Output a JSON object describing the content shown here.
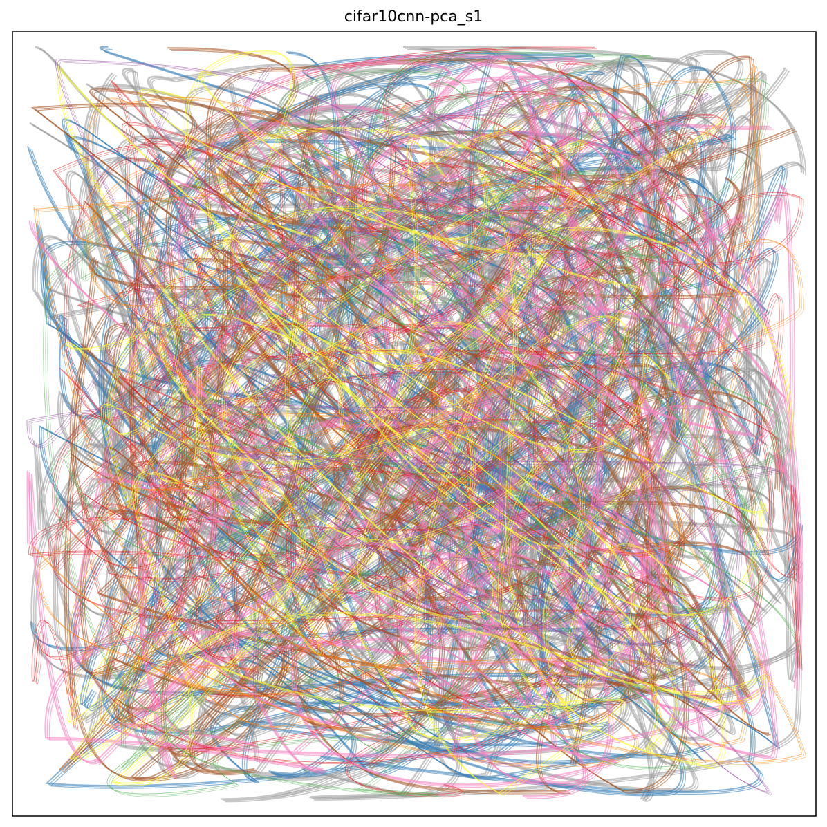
{
  "chart_data": {
    "type": "line",
    "title": "cifar10cnn-pca_s1",
    "xlabel": "",
    "ylabel": "",
    "axes_visible": false,
    "grid": false,
    "legend": "none",
    "xlim": [
      0,
      1
    ],
    "ylim": [
      0,
      1
    ],
    "series": [
      {
        "color": "#999999",
        "count": 40,
        "width": 2.6,
        "opacity": 0.55
      },
      {
        "color": "#377eb8",
        "count": 18,
        "width": 2.0,
        "opacity": 0.6
      },
      {
        "color": "#a65628",
        "count": 14,
        "width": 2.0,
        "opacity": 0.6
      },
      {
        "color": "#f781bf",
        "count": 12,
        "width": 2.2,
        "opacity": 0.6
      },
      {
        "color": "#e41a1c",
        "count": 12,
        "width": 1.0,
        "opacity": 0.55
      },
      {
        "color": "#4daf4a",
        "count": 8,
        "width": 1.0,
        "opacity": 0.55
      },
      {
        "color": "#ffff33",
        "count": 7,
        "width": 1.2,
        "opacity": 0.7
      },
      {
        "color": "#ff7f00",
        "count": 6,
        "width": 1.0,
        "opacity": 0.55
      },
      {
        "color": "#984ea3",
        "count": 6,
        "width": 1.0,
        "opacity": 0.55
      }
    ]
  }
}
